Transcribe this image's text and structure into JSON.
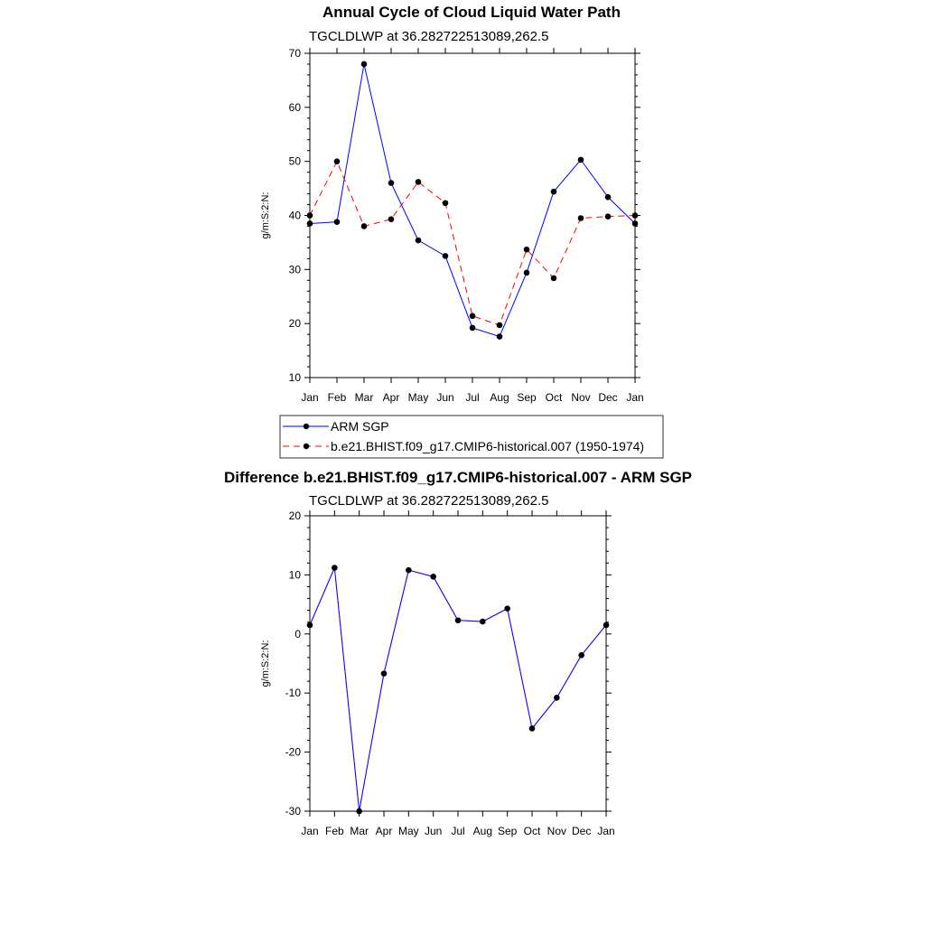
{
  "chart_data": [
    {
      "type": "line",
      "title": "Annual Cycle of Cloud Liquid Water Path",
      "subtitle": "TGCLDLWP at 36.282722513089,262.5",
      "ylabel": "g/m:S:2:N:",
      "xlabel": "",
      "categories": [
        "Jan",
        "Feb",
        "Mar",
        "Apr",
        "May",
        "Jun",
        "Jul",
        "Aug",
        "Sep",
        "Oct",
        "Nov",
        "Dec",
        "Jan"
      ],
      "ylim": [
        10,
        70
      ],
      "yticks": [
        10,
        20,
        30,
        40,
        50,
        60,
        70
      ],
      "series": [
        {
          "name": "ARM SGP",
          "color": "#0000ff",
          "dash": "solid",
          "values": [
            38.5,
            38.8,
            68.0,
            46.0,
            35.4,
            32.5,
            19.2,
            17.6,
            29.4,
            44.4,
            50.3,
            43.4,
            38.5
          ]
        },
        {
          "name": "b.e21.BHIST.f09_g17.CMIP6-historical.007 (1950-1974)",
          "color": "#ff0000",
          "dash": "dashed",
          "values": [
            40.0,
            50.0,
            38.0,
            39.3,
            46.2,
            42.3,
            21.4,
            19.7,
            33.7,
            28.4,
            39.5,
            39.8,
            40.0
          ]
        }
      ],
      "legend_position": "bottom"
    },
    {
      "type": "line",
      "title": "Difference b.e21.BHIST.f09_g17.CMIP6-historical.007 - ARM SGP",
      "subtitle": "TGCLDLWP at 36.282722513089,262.5",
      "ylabel": "g/m:S:2:N:",
      "xlabel": "",
      "categories": [
        "Jan",
        "Feb",
        "Mar",
        "Apr",
        "May",
        "Jun",
        "Jul",
        "Aug",
        "Sep",
        "Oct",
        "Nov",
        "Dec",
        "Jan"
      ],
      "ylim": [
        -30,
        20
      ],
      "yticks": [
        -30,
        -20,
        -10,
        0,
        10,
        20
      ],
      "series": [
        {
          "name": "Difference",
          "color": "#0000ff",
          "dash": "solid",
          "values": [
            1.5,
            11.2,
            -30.0,
            -6.7,
            10.8,
            9.7,
            2.3,
            2.1,
            4.3,
            -16.0,
            -10.8,
            -3.6,
            1.5
          ]
        }
      ]
    }
  ]
}
